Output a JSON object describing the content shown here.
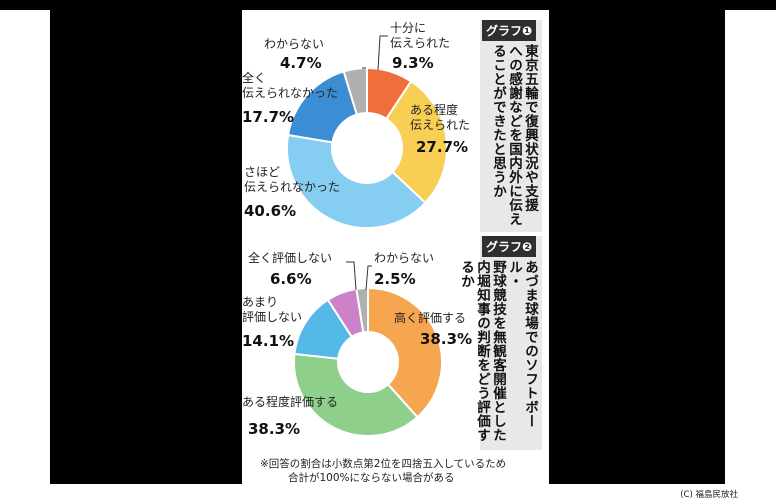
{
  "copyright": "(C) 福島民放社",
  "footnote": [
    "※回答の割合は小数点第2位を四捨五入しているため",
    "合計が100%にならない場合がある"
  ],
  "chart_data": [
    {
      "type": "pie",
      "badge": "グラフ❶",
      "question": [
        "東京五輪で復興状況や支援",
        "への感謝などを国内外に伝え",
        "ることができたと思うか"
      ],
      "slices": [
        {
          "label": [
            "十分に",
            "伝えられた"
          ],
          "value": 9.3,
          "pct": "9.3%",
          "color": "#f06e3c"
        },
        {
          "label": [
            "ある程度",
            "伝えられた"
          ],
          "value": 27.7,
          "pct": "27.7%",
          "color": "#f8ce55"
        },
        {
          "label": [
            "さほど",
            "伝えられなかった"
          ],
          "value": 40.6,
          "pct": "40.6%",
          "color": "#85cdf1"
        },
        {
          "label": [
            "全く",
            "伝えられなかった"
          ],
          "value": 17.7,
          "pct": "17.7%",
          "color": "#3c8ed4"
        },
        {
          "label": [
            "わからない"
          ],
          "value": 4.7,
          "pct": "4.7%",
          "color": "#b0b0b0"
        }
      ]
    },
    {
      "type": "pie",
      "badge": "グラフ❷",
      "question": [
        "あづま球場でのソフトボール・",
        "野球競技を無観客開催とした",
        "内堀知事の判断をどう評価するか"
      ],
      "slices": [
        {
          "label": [
            "高く評価する"
          ],
          "value": 38.3,
          "pct": "38.3%",
          "color": "#f5a64f"
        },
        {
          "label": [
            "ある程度評価する"
          ],
          "value": 38.3,
          "pct": "38.3%",
          "color": "#8ed08b"
        },
        {
          "label": [
            "あまり",
            "評価しない"
          ],
          "value": 14.1,
          "pct": "14.1%",
          "color": "#54b8e8"
        },
        {
          "label": [
            "全く評価しない"
          ],
          "value": 6.6,
          "pct": "6.6%",
          "color": "#cc82c8"
        },
        {
          "label": [
            "わからない"
          ],
          "value": 2.5,
          "pct": "2.5%",
          "color": "#b0b0b0"
        }
      ]
    }
  ]
}
